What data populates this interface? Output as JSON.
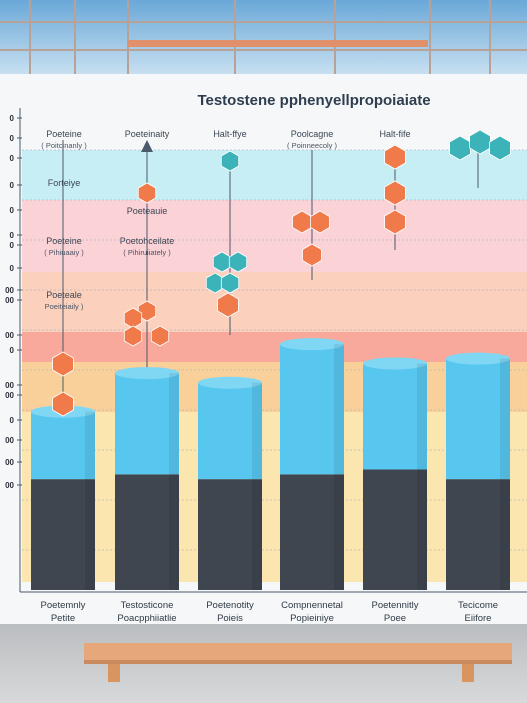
{
  "chart_data": {
    "type": "bar",
    "title": "Testostene pphenyellpropoiaiate",
    "categories": [
      [
        "Poetemnly",
        "Petite"
      ],
      [
        "Testosticone",
        "Poacpphiiatlie"
      ],
      [
        "Poetenotity",
        "Poieis"
      ],
      [
        "Compnennetal",
        "Popieiniye"
      ],
      [
        "Poetennitly",
        "Poee"
      ],
      [
        "Tecicome",
        "Eiifore"
      ]
    ],
    "series": [
      {
        "values": [
          23,
          24,
          23,
          24,
          25,
          23
        ]
      },
      {
        "values": [
          14,
          21,
          20,
          27,
          22,
          25
        ]
      }
    ],
    "ylim": [
      0,
      100
    ],
    "ytick_labels": [
      "0",
      "0",
      "0",
      "0",
      "0",
      "0",
      "0",
      "0",
      "00",
      "00",
      "00",
      "0",
      "00",
      "00",
      "0",
      "00",
      "00",
      "00"
    ],
    "annotations": [
      {
        "text": "Poeteine",
        "sub": "( Poitcinanly )"
      },
      {
        "text": "Poeteinaity",
        "sub": ""
      },
      {
        "text": "Halt-ffye",
        "sub": ""
      },
      {
        "text": "Poolcagne",
        "sub": "( Poinneecoly )"
      },
      {
        "text": "Halt-fife",
        "sub": ""
      },
      {
        "text": "Forteiye",
        "sub": ""
      },
      {
        "text": "Poeteauie",
        "sub": ""
      },
      {
        "text": "Poeteine",
        "sub": "( Pihiuaaiy )"
      },
      {
        "text": "Poetohceilate",
        "sub": "( Pihiruiiately )"
      },
      {
        "text": "Poeteale",
        "sub": "Poeiteiaily )"
      }
    ]
  },
  "colors": {
    "bar_top": "#58c7ef",
    "bar_bottom": "#3f4650",
    "molecule_orange": "#f07a4a",
    "molecule_teal": "#3cb3b8"
  }
}
